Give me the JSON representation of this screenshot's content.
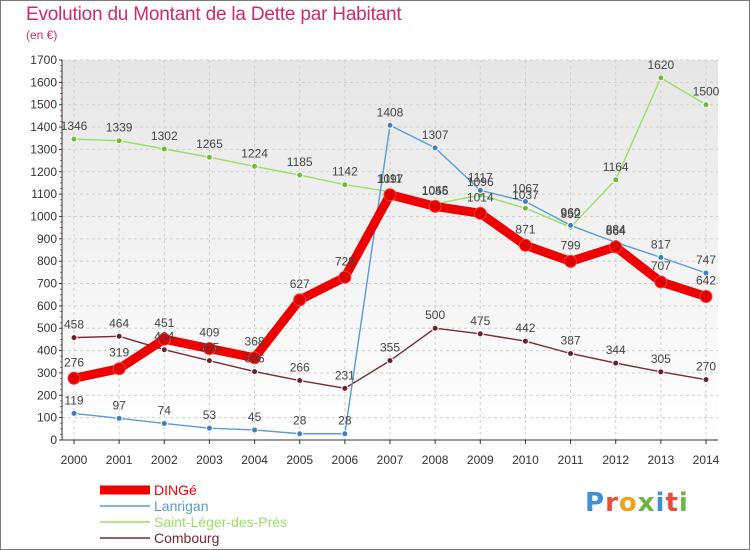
{
  "page": {
    "title": "Evolution du Montant de la Dette par Habitant",
    "subtitle": "(en €)",
    "logo_text": "Proxiti",
    "logo_colors": [
      "#3d8fd6",
      "#e84c3c",
      "#f0a21b",
      "#6db63e",
      "#3d8fd6",
      "#e84c3c",
      "#6db63e"
    ]
  },
  "chart_data": {
    "type": "line",
    "x": [
      "2000",
      "2001",
      "2002",
      "2003",
      "2004",
      "2005",
      "2006",
      "2007",
      "2008",
      "2009",
      "2010",
      "2011",
      "2012",
      "2013",
      "2014"
    ],
    "ylim": [
      0,
      1700
    ],
    "yticks": [
      0,
      100,
      200,
      300,
      400,
      500,
      600,
      700,
      800,
      900,
      1000,
      1100,
      1200,
      1300,
      1400,
      1500,
      1600,
      1700
    ],
    "grid": true,
    "legend_position": "bottom-left",
    "series": [
      {
        "name": "DINGé",
        "color": "#ee0000",
        "marker_color": "#e00000",
        "values": [
          276,
          319,
          451,
          409,
          368,
          627,
          728,
          1097,
          1045,
          1014,
          871,
          799,
          864,
          707,
          642
        ]
      },
      {
        "name": "Lanrigan",
        "color": "#5b9bd5",
        "marker_color": "#3d7fc4",
        "values": [
          119,
          97,
          74,
          53,
          45,
          28,
          28,
          1408,
          1307,
          1117,
          1067,
          960,
          884,
          817,
          747
        ]
      },
      {
        "name": "Saint-Léger-des-Prés",
        "color": "#99dd66",
        "marker_color": "#6dbb33",
        "values": [
          1346,
          1339,
          1302,
          1265,
          1224,
          1185,
          1142,
          1111,
          1056,
          1096,
          1037,
          952,
          1164,
          1620,
          1500
        ]
      },
      {
        "name": "Combourg",
        "color": "#7a2b35",
        "marker_color": "#6a1f2a",
        "values": [
          458,
          464,
          404,
          355,
          306,
          266,
          231,
          355,
          500,
          475,
          442,
          387,
          344,
          305,
          270
        ]
      }
    ]
  }
}
